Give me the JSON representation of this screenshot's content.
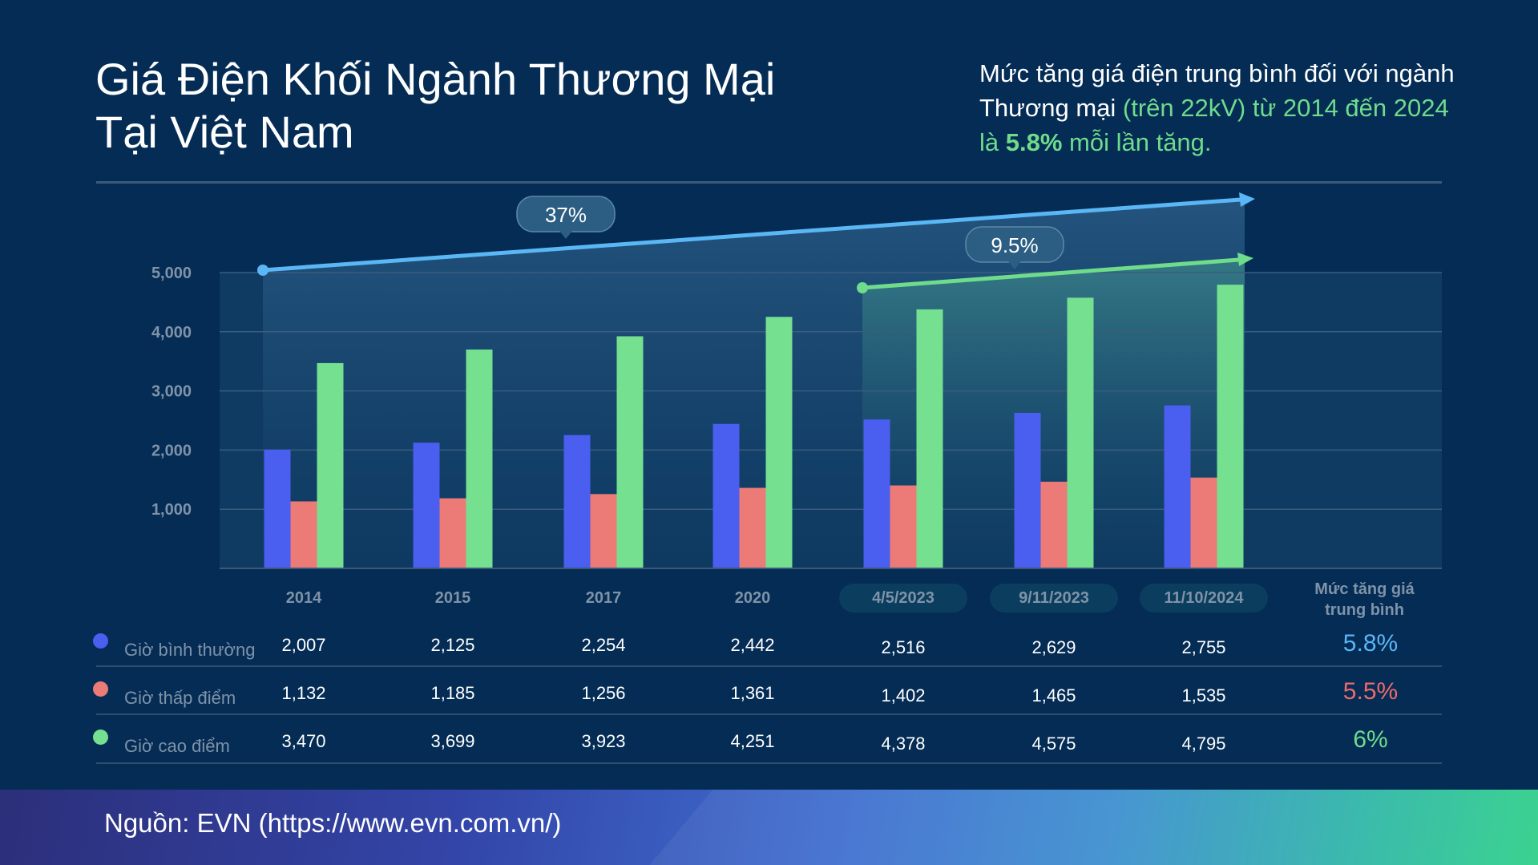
{
  "title_line1": "Giá Điện Khối Ngành Thương Mại",
  "title_line2": "Tại Việt Nam",
  "summary": {
    "part1": "Mức tăng giá điện trung bình đối với ngành Thương mại ",
    "part2": "(trên 22kV) từ 2014 đến 2024 là ",
    "bold": "5.8%",
    "part3": " mỗi lần tăng."
  },
  "chart_data": {
    "type": "bar",
    "categories": [
      "2014",
      "2015",
      "2017",
      "2020",
      "4/5/2023",
      "9/11/2023",
      "11/10/2024"
    ],
    "series": [
      {
        "name": "Giờ bình thường",
        "color": "#4a5ef0",
        "values": [
          2007,
          2125,
          2254,
          2442,
          2516,
          2629,
          2755
        ],
        "labels": [
          "2,007",
          "2,125",
          "2,254",
          "2,442",
          "2,516",
          "2,629",
          "2,755"
        ],
        "avg": "5.8%",
        "avg_color": "#5bb6f5"
      },
      {
        "name": "Giờ thấp điểm",
        "color": "#ec7b78",
        "values": [
          1132,
          1185,
          1256,
          1361,
          1402,
          1465,
          1535
        ],
        "labels": [
          "1,132",
          "1,185",
          "1,256",
          "1,361",
          "1,402",
          "1,465",
          "1,535"
        ],
        "avg": "5.5%",
        "avg_color": "#ef6a6a"
      },
      {
        "name": "Giờ cao điểm",
        "color": "#74e090",
        "values": [
          3470,
          3699,
          3923,
          4251,
          4378,
          4575,
          4795
        ],
        "labels": [
          "3,470",
          "3,699",
          "3,923",
          "4,251",
          "4,378",
          "4,575",
          "4,795"
        ],
        "avg": "6%",
        "avg_color": "#6fdc8c"
      }
    ],
    "yticks": [
      "1,000",
      "2,000",
      "3,000",
      "4,000",
      "5,000"
    ],
    "ytick_values": [
      1000,
      2000,
      3000,
      4000,
      5000
    ],
    "ylim": [
      0,
      5000
    ],
    "grid": true,
    "annotations": [
      {
        "label": "37%",
        "from": "2014",
        "to": "11/10/2024",
        "color": "#5bb6f5"
      },
      {
        "label": "9.5%",
        "from": "4/5/2023",
        "to": "11/10/2024",
        "color": "#6fdc8c"
      }
    ],
    "avg_header": "Mức tăng giá trung bình"
  },
  "footer": {
    "source": "Nguồn: EVN (https://www.evn.com.vn/)"
  }
}
